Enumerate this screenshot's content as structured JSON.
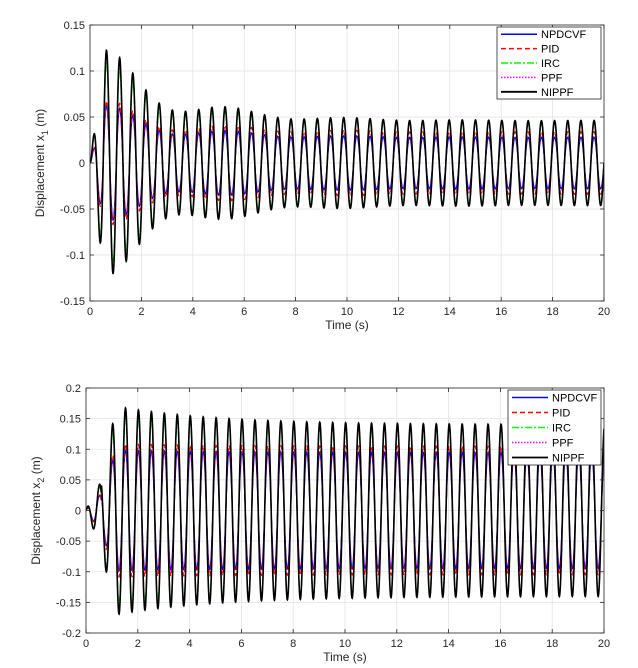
{
  "chart_data": [
    {
      "type": "line",
      "xlabel": "Time (s)",
      "ylabel": "Displacement  x",
      "ylabel_sub": "1",
      "ylabel_unit": " (m)",
      "xlim": [
        0,
        20
      ],
      "ylim": [
        -0.15,
        0.15
      ],
      "xticks": [
        0,
        2,
        4,
        6,
        8,
        10,
        12,
        14,
        16,
        18,
        20
      ],
      "yticks": [
        -0.15,
        -0.1,
        -0.05,
        0,
        0.05,
        0.1,
        0.15
      ],
      "xtick_labels": [
        "0",
        "2",
        "4",
        "6",
        "8",
        "10",
        "12",
        "14",
        "16",
        "18",
        "20"
      ],
      "ytick_labels": [
        "-0.15",
        "-0.1",
        "-0.05",
        "0",
        "0.05",
        "0.1",
        "0.15"
      ],
      "grid": true,
      "legend_position": "top-right",
      "series": [
        {
          "name": "NPDCVF",
          "color": "#0000ff",
          "style": "solid",
          "steady_amplitude": 0.028,
          "peak_amplitude": 0.057
        },
        {
          "name": "PID",
          "color": "#ff0000",
          "style": "dashed",
          "steady_amplitude": 0.034,
          "peak_amplitude": 0.06
        },
        {
          "name": "IRC",
          "color": "#00ff00",
          "style": "dashdot",
          "steady_amplitude": 0.043,
          "peak_amplitude": 0.1
        },
        {
          "name": "PPF",
          "color": "#ff00ff",
          "style": "dotted",
          "steady_amplitude": 0.046,
          "peak_amplitude": 0.113
        },
        {
          "name": "NIPPF",
          "color": "#000000",
          "style": "solid",
          "steady_amplitude": 0.046,
          "peak_amplitude": 0.113
        }
      ]
    },
    {
      "type": "line",
      "xlabel": "Time (s)",
      "ylabel": "Displacement  x",
      "ylabel_sub": "2",
      "ylabel_unit": " (m)",
      "xlim": [
        0,
        20
      ],
      "ylim": [
        -0.2,
        0.2
      ],
      "xticks": [
        0,
        2,
        4,
        6,
        8,
        10,
        12,
        14,
        16,
        18,
        20
      ],
      "yticks": [
        -0.2,
        -0.15,
        -0.1,
        -0.05,
        0,
        0.05,
        0.1,
        0.15,
        0.2
      ],
      "xtick_labels": [
        "0",
        "2",
        "4",
        "6",
        "8",
        "10",
        "12",
        "14",
        "16",
        "18",
        "20"
      ],
      "ytick_labels": [
        "-0.2",
        "-0.15",
        "-0.1",
        "-0.05",
        "0",
        "0.05",
        "0.1",
        "0.15",
        "0.2"
      ],
      "grid": true,
      "legend_position": "top-right",
      "series": [
        {
          "name": "NPDCVF",
          "color": "#0000ff",
          "style": "solid",
          "steady_amplitude": 0.095,
          "peak_amplitude": 0.1
        },
        {
          "name": "PID",
          "color": "#ff0000",
          "style": "dashed",
          "steady_amplitude": 0.105,
          "peak_amplitude": 0.11
        },
        {
          "name": "IRC",
          "color": "#00ff00",
          "style": "dashdot",
          "steady_amplitude": 0.135,
          "peak_amplitude": 0.16
        },
        {
          "name": "PPF",
          "color": "#ff00ff",
          "style": "dotted",
          "steady_amplitude": 0.14,
          "peak_amplitude": 0.18
        },
        {
          "name": "NIPPF",
          "color": "#000000",
          "style": "solid",
          "steady_amplitude": 0.14,
          "peak_amplitude": 0.18
        }
      ]
    }
  ]
}
